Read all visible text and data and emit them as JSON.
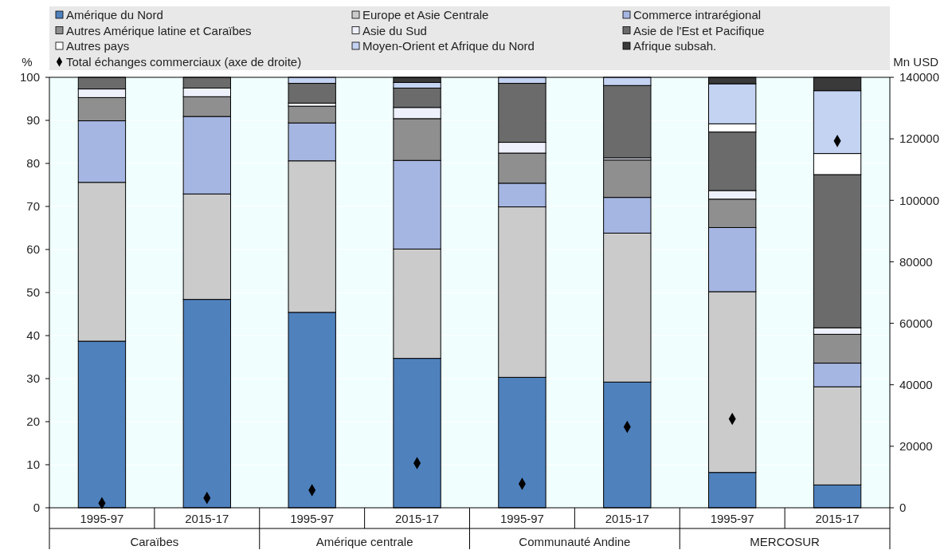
{
  "chart_data": {
    "type": "bar",
    "stacked": true,
    "ylabel": "%",
    "y2label": "Mn USD",
    "categories": [
      "1995-97",
      "2015-17",
      "1995-97",
      "2015-17",
      "1995-97",
      "2015-17",
      "1995-97",
      "2015-17"
    ],
    "annotations": [
      "Caraïbes",
      "Amérique centrale",
      "Communauté Andine",
      "MERCOSUR"
    ],
    "series": [
      {
        "name": "Amérique du Nord",
        "color": "#4f81bd",
        "values": [
          38.7,
          48.4,
          45.4,
          34.7,
          30.3,
          29.2,
          8.2,
          5.3
        ]
      },
      {
        "name": "Europe et Asie Centrale",
        "color": "#cbcbcb",
        "values": [
          36.9,
          24.5,
          35.2,
          25.4,
          39.6,
          34.6,
          42.0,
          22.8
        ]
      },
      {
        "name": "Commerce intrarégional",
        "color": "#a6b6e2",
        "values": [
          14.3,
          18.0,
          8.8,
          20.6,
          5.5,
          8.3,
          14.9,
          5.5
        ]
      },
      {
        "name": "Autres Amérique latine et Caraïbes",
        "color": "#8f8f8f",
        "values": [
          5.4,
          4.6,
          3.9,
          9.7,
          7.0,
          8.7,
          6.6,
          6.7
        ]
      },
      {
        "name": "Asie du Sud",
        "color": "#eef1fb",
        "values": [
          2.0,
          2.0,
          0.7,
          2.6,
          2.5,
          0.5,
          2.0,
          1.5
        ]
      },
      {
        "name": "Asie de l'Est et Pacifique",
        "color": "#6b6b6b",
        "values": [
          2.7,
          2.5,
          4.6,
          4.5,
          13.7,
          16.8,
          13.6,
          35.6
        ]
      },
      {
        "name": "Autres pays",
        "color": "#ffffff",
        "values": [
          0,
          0,
          0,
          0,
          0,
          0,
          1.9,
          4.9
        ]
      },
      {
        "name": "Moyen-Orient et Afrique du Nord",
        "color": "#c4d3f2",
        "values": [
          0,
          0,
          1.4,
          1.3,
          1.4,
          1.9,
          9.3,
          14.6
        ]
      },
      {
        "name": "Afrique subsah.",
        "color": "#3a3a3a",
        "values": [
          0,
          0,
          0,
          1.2,
          0,
          0,
          1.5,
          3.1
        ]
      },
      {
        "name": "Total échanges commerciaux (axe de droite)",
        "type": "scatter",
        "axis": "y2",
        "marker": "diamond",
        "color": "#000000",
        "values": [
          1500,
          3200,
          5700,
          14500,
          7800,
          26300,
          28900,
          119300
        ]
      }
    ],
    "ylim": [
      0,
      100
    ],
    "yticks": [
      0,
      10,
      20,
      30,
      40,
      50,
      60,
      70,
      80,
      90,
      100
    ],
    "y2lim": [
      0,
      140000
    ],
    "y2ticks": [
      0,
      20000,
      40000,
      60000,
      80000,
      100000,
      120000,
      140000
    ],
    "grid": "y",
    "legend": "top"
  }
}
